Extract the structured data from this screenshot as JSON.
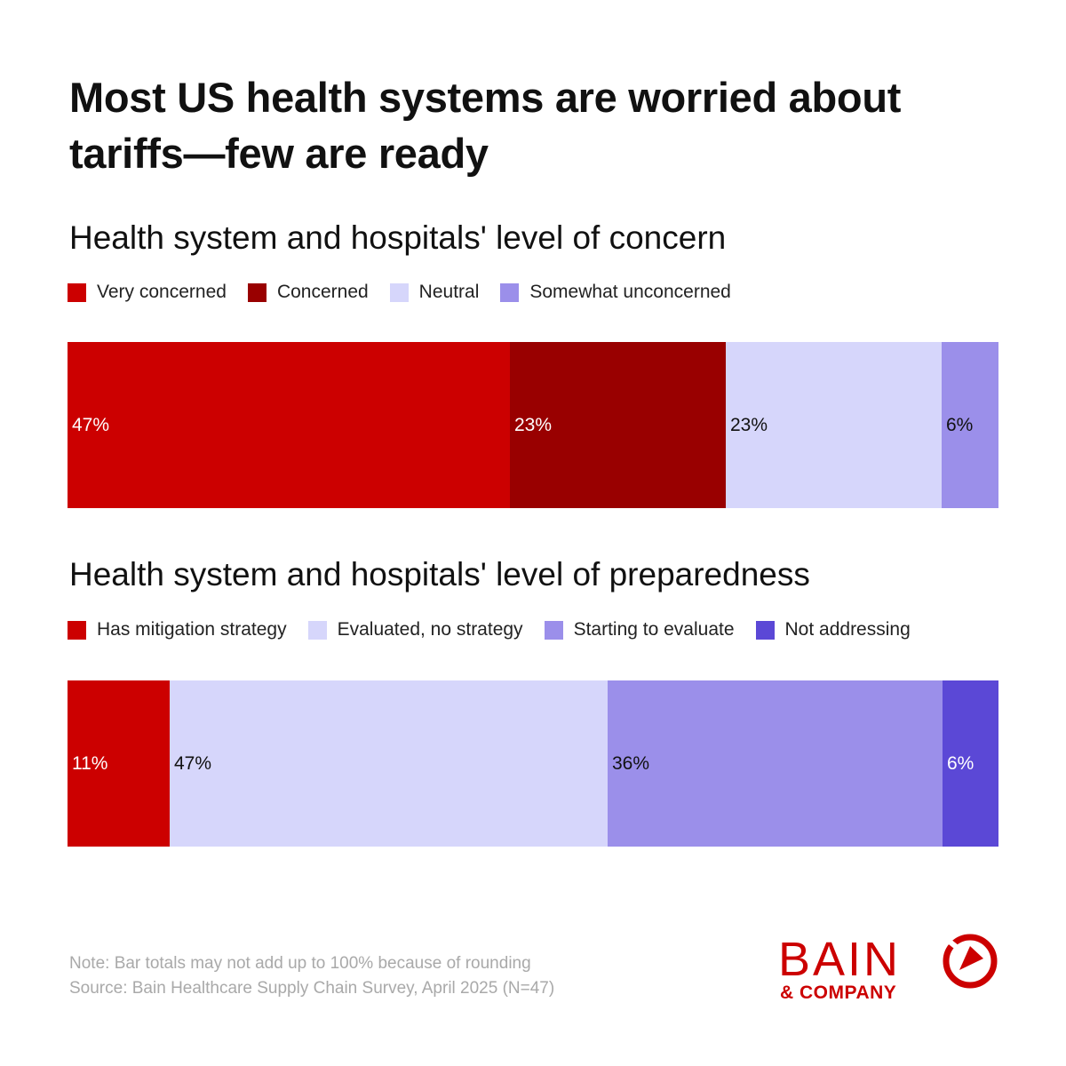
{
  "title": "Most US health systems are worried about tariffs—few are ready",
  "chart_data": [
    {
      "type": "bar",
      "orientation": "horizontal-stacked",
      "title": "Health system and hospitals' level of concern",
      "legend_placement": "top",
      "series": [
        {
          "name": "Very concerned",
          "value": 47,
          "label": "47%",
          "color": "#cc0000",
          "text_color": "#ffffff"
        },
        {
          "name": "Concerned",
          "value": 23,
          "label": "23%",
          "color": "#990000",
          "text_color": "#ffffff"
        },
        {
          "name": "Neutral",
          "value": 23,
          "label": "23%",
          "color": "#d6d6fb",
          "text_color": "#111111"
        },
        {
          "name": "Somewhat unconcerned",
          "value": 6,
          "label": "6%",
          "color": "#9b8fea",
          "text_color": "#111111"
        }
      ]
    },
    {
      "type": "bar",
      "orientation": "horizontal-stacked",
      "title": "Health system and hospitals' level of preparedness",
      "legend_placement": "top",
      "series": [
        {
          "name": "Has mitigation strategy",
          "value": 11,
          "label": "11%",
          "color": "#cc0000",
          "text_color": "#ffffff"
        },
        {
          "name": "Evaluated, no strategy",
          "value": 47,
          "label": "47%",
          "color": "#d6d6fb",
          "text_color": "#111111"
        },
        {
          "name": "Starting to evaluate",
          "value": 36,
          "label": "36%",
          "color": "#9b8fea",
          "text_color": "#111111"
        },
        {
          "name": "Not addressing",
          "value": 6,
          "label": "6%",
          "color": "#5b48d6",
          "text_color": "#ffffff"
        }
      ]
    }
  ],
  "note": "Note: Bar totals may not add up to 100% because of rounding",
  "source": "Source: Bain Healthcare Supply Chain Survey, April 2025 (N=47)",
  "logo": {
    "name": "BAIN",
    "sub": "& COMPANY",
    "color": "#cc0000"
  }
}
